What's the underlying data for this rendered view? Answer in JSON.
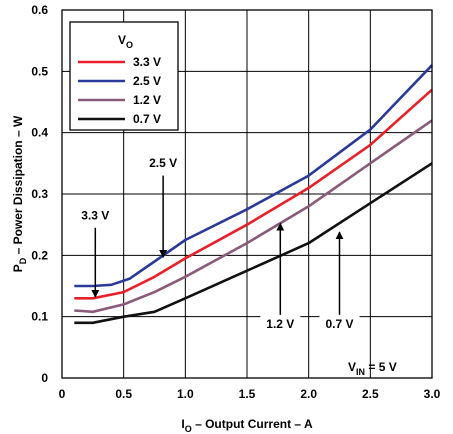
{
  "chart_data": {
    "type": "line",
    "xlabel": {
      "main": "I",
      "sub": "O",
      "rest": " – Output Current – A"
    },
    "ylabel": {
      "main": "P",
      "sub": "D",
      "rest": " – Power Dissipation – W"
    },
    "xlim": [
      0,
      3.0
    ],
    "ylim": [
      0,
      0.6
    ],
    "xticks": [
      0,
      0.5,
      1.0,
      1.5,
      2.0,
      2.5,
      3.0
    ],
    "xtick_labels": [
      "0",
      "0.5",
      "1.0",
      "1.5",
      "2.0",
      "2.5",
      "3.0"
    ],
    "yticks": [
      0,
      0.1,
      0.2,
      0.3,
      0.4,
      0.5,
      0.6
    ],
    "ytick_labels": [
      "0",
      "0.1",
      "0.2",
      "0.3",
      "0.4",
      "0.5",
      "0.6"
    ],
    "grid": true,
    "legend": {
      "title_main": "V",
      "title_sub": "O",
      "placement": "top-left"
    },
    "series": [
      {
        "name": "3.3 V",
        "color": "#e8202a",
        "x": [
          0.1,
          0.25,
          0.5,
          0.75,
          1.0,
          1.5,
          2.0,
          2.5,
          3.0
        ],
        "y": [
          0.13,
          0.13,
          0.14,
          0.165,
          0.195,
          0.25,
          0.31,
          0.38,
          0.47
        ]
      },
      {
        "name": "2.5 V",
        "color": "#2a3a9a",
        "x": [
          0.1,
          0.25,
          0.4,
          0.55,
          0.75,
          1.0,
          1.5,
          2.0,
          2.5,
          3.0
        ],
        "y": [
          0.15,
          0.15,
          0.152,
          0.162,
          0.19,
          0.225,
          0.275,
          0.33,
          0.405,
          0.51
        ]
      },
      {
        "name": "1.2 V",
        "color": "#8a5a7a",
        "x": [
          0.1,
          0.25,
          0.5,
          0.75,
          1.0,
          1.5,
          2.0,
          2.5,
          3.0
        ],
        "y": [
          0.11,
          0.108,
          0.12,
          0.14,
          0.165,
          0.22,
          0.28,
          0.35,
          0.42
        ]
      },
      {
        "name": "0.7 V",
        "color": "#111111",
        "x": [
          0.1,
          0.25,
          0.5,
          0.75,
          1.0,
          1.5,
          2.0,
          2.5,
          3.0
        ],
        "y": [
          0.09,
          0.09,
          0.1,
          0.108,
          0.13,
          0.175,
          0.22,
          0.285,
          0.35
        ]
      }
    ],
    "annotations": [
      {
        "text": "3.3 V",
        "label_x": 0.27,
        "label_y": 0.262,
        "arrow_from": [
          0.27,
          0.245
        ],
        "arrow_to": [
          0.27,
          0.132
        ]
      },
      {
        "text": "2.5 V",
        "label_x": 0.82,
        "label_y": 0.347,
        "arrow_from": [
          0.82,
          0.33
        ],
        "arrow_to": [
          0.82,
          0.197
        ]
      },
      {
        "text": "1.2 V",
        "label_x": 1.77,
        "label_y": 0.085,
        "arrow_from": [
          1.77,
          0.1
        ],
        "arrow_to": [
          1.77,
          0.252
        ]
      },
      {
        "text": "0.7 V",
        "label_x": 2.25,
        "label_y": 0.085,
        "arrow_from": [
          2.25,
          0.1
        ],
        "arrow_to": [
          2.25,
          0.238
        ]
      }
    ],
    "condition": {
      "main": "V",
      "sub": "IN",
      "rest": " = 5 V"
    }
  }
}
